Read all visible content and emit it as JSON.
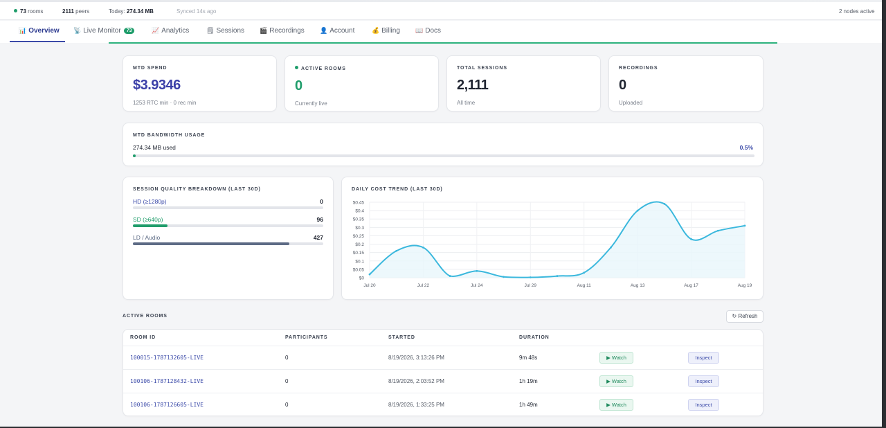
{
  "statusbar": {
    "rooms_count": "73",
    "rooms_label": "rooms",
    "peers_count": "2111",
    "peers_label": "peers",
    "today_label": "Today:",
    "today_value": "274.34 MB",
    "synced": "Synced 14s ago",
    "nodes": "2 nodes active",
    "live_color": "#1f9d6b"
  },
  "nav": {
    "tabs": [
      {
        "label": "Overview",
        "icon": "bar-chart-icon"
      },
      {
        "label": "Live Monitor",
        "icon": "broadcast-icon",
        "badge": "73"
      },
      {
        "label": "Analytics",
        "icon": "trend-chart-icon"
      },
      {
        "label": "Sessions",
        "icon": "list-icon"
      },
      {
        "label": "Recordings",
        "icon": "clapper-icon"
      },
      {
        "label": "Account",
        "icon": "user-icon"
      },
      {
        "label": "Billing",
        "icon": "money-bag-icon"
      },
      {
        "label": "Docs",
        "icon": "book-icon"
      }
    ],
    "active": "Overview"
  },
  "stats": {
    "mtd_spend": {
      "label": "MTD SPEND",
      "value": "$3.9346",
      "sub": "1253 RTC min · 0 rec min",
      "color": "#3b3fa8"
    },
    "active_rooms": {
      "label": "ACTIVE ROOMS",
      "value": "0",
      "sub": "Currently live",
      "color": "#1f9d6b"
    },
    "total_sessions": {
      "label": "TOTAL SESSIONS",
      "value": "2,111",
      "sub": "All time"
    },
    "recordings": {
      "label": "RECORDINGS",
      "value": "0",
      "sub": "Uploaded"
    }
  },
  "bandwidth": {
    "label": "MTD BANDWIDTH USAGE",
    "used": "274.34 MB used",
    "percent_label": "0.5%",
    "fraction": 0.005
  },
  "quality": {
    "title": "SESSION QUALITY BREAKDOWN (LAST 30D)",
    "rows": [
      {
        "label": "HD (≥1280p)",
        "value": "0",
        "fraction": 0.0,
        "color": "#3b4aa8"
      },
      {
        "label": "SD (≥640p)",
        "value": "96",
        "fraction": 0.18,
        "color": "#1f9d6b"
      },
      {
        "label": "LD / Audio",
        "value": "427",
        "fraction": 0.82,
        "color": "#5d6b85"
      }
    ]
  },
  "chart_data": {
    "type": "area",
    "title": "DAILY COST TREND (LAST 30D)",
    "x": [
      "Jul 20",
      "Jul 21",
      "Jul 22",
      "Jul 23",
      "Jul 24",
      "Jul 25",
      "Jul 29",
      "Aug 10",
      "Aug 11",
      "Aug 12",
      "Aug 13",
      "Aug 16",
      "Aug 17",
      "Aug 18",
      "Aug 19"
    ],
    "x_ticks": [
      "Jul 20",
      "Jul 22",
      "Jul 24",
      "Jul 29",
      "Aug 11",
      "Aug 13",
      "Aug 17",
      "Aug 19"
    ],
    "values": [
      0.02,
      0.16,
      0.18,
      0.01,
      0.04,
      0.005,
      0.002,
      0.01,
      0.03,
      0.18,
      0.4,
      0.44,
      0.23,
      0.28,
      0.31
    ],
    "y_ticks": [
      "$0",
      "$0.05",
      "$0.1",
      "$0.15",
      "$0.2",
      "$0.25",
      "$0.3",
      "$0.35",
      "$0.4",
      "$0.45"
    ],
    "ylim": [
      0,
      0.45
    ],
    "line_color": "#3bb8dd",
    "grid": true
  },
  "active_rooms": {
    "title": "ACTIVE ROOMS",
    "refresh_label": "↻ Refresh",
    "columns": [
      "ROOM ID",
      "PARTICIPANTS",
      "STARTED",
      "DURATION"
    ],
    "rows": [
      {
        "room_id": "100015-1787132605-LIVE",
        "participants": "0",
        "started": "8/19/2026, 3:13:26 PM",
        "duration": "9m 48s",
        "watch": "▶ Watch",
        "inspect": "Inspect"
      },
      {
        "room_id": "100106-1787128432-LIVE",
        "participants": "0",
        "started": "8/19/2026, 2:03:52 PM",
        "duration": "1h 19m",
        "watch": "▶ Watch",
        "inspect": "Inspect"
      },
      {
        "room_id": "100106-1787126605-LIVE",
        "participants": "0",
        "started": "8/19/2026, 1:33:25 PM",
        "duration": "1h 49m",
        "watch": "▶ Watch",
        "inspect": "Inspect"
      }
    ]
  }
}
